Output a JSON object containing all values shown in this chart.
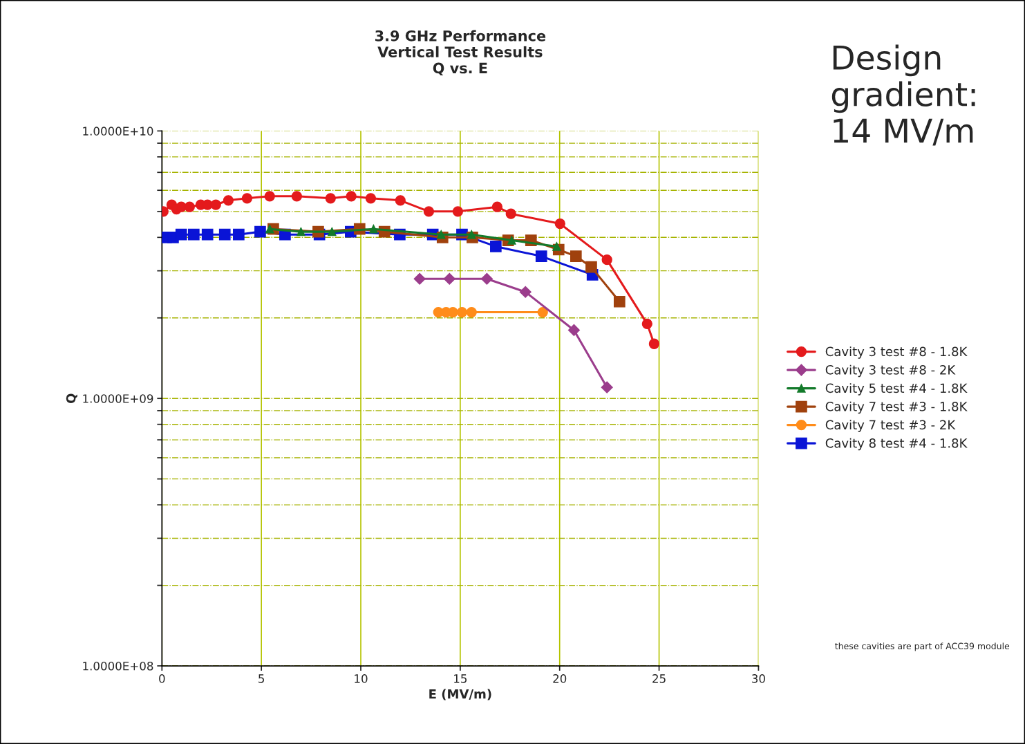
{
  "chart_data": {
    "type": "line",
    "title": "3.9 GHz Performance\nVertical Test Results\nQ vs. E",
    "xlabel": "E (MV/m)",
    "ylabel": "Q",
    "annotations": [
      "Design\ngradient:\n14 MV/m",
      "these cavities are part of ACC39 module"
    ],
    "log": "y",
    "xlim": [
      0,
      30
    ],
    "xticks": [
      0,
      5,
      10,
      15,
      20,
      25,
      30
    ],
    "ylim": [
      100000000,
      10000000000
    ],
    "yticks": [
      {
        "value": 100000000,
        "label": "1.0000E+08"
      },
      {
        "value": 200000000,
        "label": null
      },
      {
        "value": 300000000,
        "label": null
      },
      {
        "value": 400000000,
        "label": null
      },
      {
        "value": 500000000,
        "label": null
      },
      {
        "value": 600000000,
        "label": null
      },
      {
        "value": 700000000,
        "label": null
      },
      {
        "value": 800000000,
        "label": null
      },
      {
        "value": 900000000,
        "label": null
      },
      {
        "value": 1000000000,
        "label": "1.0000E+09"
      },
      {
        "value": 2000000000,
        "label": null
      },
      {
        "value": 3000000000,
        "label": null
      },
      {
        "value": 4000000000,
        "label": null
      },
      {
        "value": 5000000000,
        "label": null
      },
      {
        "value": 6000000000,
        "label": null
      },
      {
        "value": 7000000000,
        "label": null
      },
      {
        "value": 8000000000,
        "label": null
      },
      {
        "value": 9000000000,
        "label": null
      },
      {
        "value": 10000000000,
        "label": "1.0000E+10"
      }
    ],
    "grid": true,
    "legend": "right",
    "line_style": "solid",
    "series": [
      {
        "name": "Cavity 3 test #8 - 1.8K",
        "color": "#e41a1c",
        "marker": "circle",
        "x": [
          0.07,
          0.49,
          0.73,
          0.97,
          1.39,
          1.95,
          2.29,
          2.71,
          3.34,
          4.28,
          5.42,
          6.78,
          8.48,
          9.52,
          10.5,
          11.99,
          13.42,
          14.88,
          16.86,
          17.55,
          20.02,
          22.38,
          24.4,
          24.75
        ],
        "values": [
          5000000000.0,
          5300000000.0,
          5100000000.0,
          5200000000.0,
          5200000000.0,
          5300000000.0,
          5300000000.0,
          5300000000.0,
          5500000000.0,
          5600000000.0,
          5700000000.0,
          5700000000.0,
          5600000000.0,
          5700000000.0,
          5600000000.0,
          5500000000.0,
          5000000000.0,
          5000000000.0,
          5200000000.0,
          4900000000.0,
          4500000000.0,
          3300000000.0,
          1900000000.0,
          1600000000.0
        ]
      },
      {
        "name": "Cavity 3 test #8 - 2K",
        "color": "#9b3d8c",
        "marker": "diamond",
        "x": [
          12.96,
          14.46,
          16.34,
          18.28,
          20.72,
          22.38
        ],
        "values": [
          2800000000.0,
          2800000000.0,
          2800000000.0,
          2500000000.0,
          1800000000.0,
          1100000000.0
        ]
      },
      {
        "name": "Cavity 5 test #4 - 1.8K",
        "color": "#137a2a",
        "marker": "triangle",
        "x": [
          5.42,
          6.99,
          8.55,
          10.64,
          14.04,
          15.57,
          17.59,
          19.85
        ],
        "values": [
          4300000000.0,
          4200000000.0,
          4200000000.0,
          4300000000.0,
          4100000000.0,
          4100000000.0,
          3900000000.0,
          3700000000.0
        ]
      },
      {
        "name": "Cavity 7 test #3 - 1.8K",
        "color": "#a0410d",
        "marker": "square",
        "x": [
          5.6,
          7.86,
          9.94,
          11.19,
          14.11,
          15.61,
          17.41,
          18.56,
          19.95,
          20.82,
          21.59,
          23.01
        ],
        "values": [
          4300000000.0,
          4200000000.0,
          4300000000.0,
          4200000000.0,
          4000000000.0,
          4000000000.0,
          3900000000.0,
          3900000000.0,
          3600000000.0,
          3400000000.0,
          3100000000.0,
          2300000000.0
        ]
      },
      {
        "name": "Cavity 7 test #3 - 2K",
        "color": "#ff8c1a",
        "marker": "circle",
        "x": [
          13.9,
          14.29,
          14.63,
          15.09,
          15.57,
          19.15
        ],
        "values": [
          2100000000.0,
          2100000000.0,
          2100000000.0,
          2100000000.0,
          2100000000.0,
          2100000000.0
        ]
      },
      {
        "name": "Cavity 8 test #4 - 1.8K",
        "color": "#0a14d6",
        "marker": "square",
        "x": [
          0.21,
          0.56,
          0.97,
          1.6,
          2.29,
          3.16,
          3.86,
          4.94,
          6.19,
          7.92,
          9.49,
          11.96,
          13.62,
          15.09,
          16.79,
          19.08,
          21.65
        ],
        "values": [
          4000000000.0,
          4000000000.0,
          4100000000.0,
          4100000000.0,
          4100000000.0,
          4100000000.0,
          4100000000.0,
          4200000000.0,
          4100000000.0,
          4100000000.0,
          4200000000.0,
          4100000000.0,
          4100000000.0,
          4100000000.0,
          3700000000.0,
          3400000000.0,
          2900000000.0
        ]
      }
    ]
  }
}
